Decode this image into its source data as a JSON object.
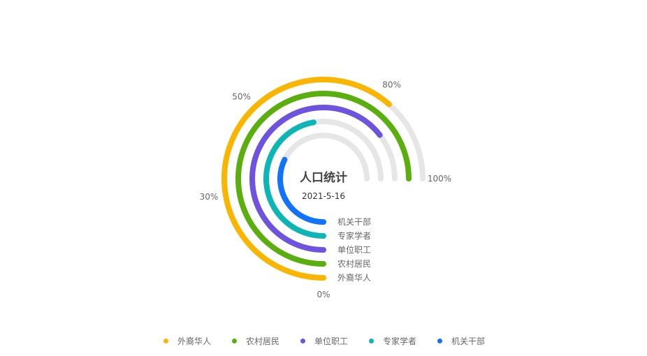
{
  "chart_data": {
    "type": "radial-bar",
    "title": "人口统计",
    "subtitle": "2021-5-16",
    "angle_axis": {
      "min": 0,
      "max": 100,
      "tick_labels": [
        "0%",
        "30%",
        "50%",
        "80%",
        "100%"
      ]
    },
    "categories": [
      "外裔华人",
      "农村居民",
      "单位职工",
      "专家学者",
      "机关干部"
    ],
    "series": [
      {
        "name": "外裔华人",
        "value": 82,
        "color": "#FAB500"
      },
      {
        "name": "农村居民",
        "value": 100,
        "color": "#5AAF0E"
      },
      {
        "name": "单位职工",
        "value": 86,
        "color": "#6D53DE"
      },
      {
        "name": "专家学者",
        "value": 63,
        "color": "#0DB5B5"
      },
      {
        "name": "机关干部",
        "value": 43,
        "color": "#1272FA"
      }
    ],
    "track_color": "#E6E6E6",
    "legend_position": "bottom"
  }
}
